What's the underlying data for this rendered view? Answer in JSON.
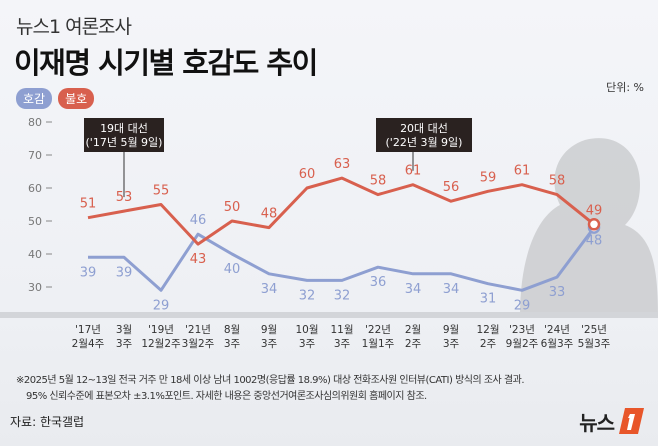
{
  "header": {
    "kicker": "뉴스1 여론조사",
    "title": "이재명 시기별 호감도 추이",
    "unit": "단위: %"
  },
  "legend": [
    {
      "label": "호감",
      "color": "#8e9fd1"
    },
    {
      "label": "불호",
      "color": "#d8604e"
    }
  ],
  "chart_data": {
    "type": "line",
    "title": "이재명 시기별 호감도 추이",
    "categories": [
      [
        "'17년",
        "2월4주"
      ],
      [
        "3월",
        "3주"
      ],
      [
        "'19년",
        "12월2주"
      ],
      [
        "'21년",
        "3월2주"
      ],
      [
        "8월",
        "3주"
      ],
      [
        "9월",
        "3주"
      ],
      [
        "10월",
        "3주"
      ],
      [
        "11월",
        "3주"
      ],
      [
        "'22년",
        "1월1주"
      ],
      [
        "2월",
        "2주"
      ],
      [
        "9월",
        "3주"
      ],
      [
        "12월",
        "2주"
      ],
      [
        "'23년",
        "9월2주"
      ],
      [
        "'24년",
        "6월3주"
      ],
      [
        "'25년",
        "5월3주"
      ]
    ],
    "series": [
      {
        "name": "호감",
        "color": "#8e9fd1",
        "values": [
          39,
          39,
          29,
          46,
          40,
          34,
          32,
          32,
          36,
          34,
          34,
          31,
          29,
          33,
          48
        ]
      },
      {
        "name": "불호",
        "color": "#d8604e",
        "values": [
          51,
          53,
          55,
          43,
          50,
          48,
          60,
          63,
          58,
          61,
          56,
          59,
          61,
          58,
          49
        ]
      }
    ],
    "yticks": [
      80,
      70,
      60,
      50,
      40,
      30
    ],
    "ylim": [
      25,
      82
    ],
    "annotations": [
      {
        "after_index": 1,
        "line1": "19대 대선",
        "line2": "('17년 5월 9일)"
      },
      {
        "after_index": 9,
        "line1": "20대 대선",
        "line2": "('22년 3월 9일)"
      }
    ]
  },
  "footnotes": [
    "※2025년 5월 12~13일 전국 거주 만 18세 이상 남녀 1002명(응답률 18.9%) 대상 전화조사원 인터뷰(CATI) 방식의 조사 결과.",
    "95% 신뢰수준에 표본오차 ±3.1%포인트. 자세한 내용은 중앙선거여론조사심의위원회 홈페이지 참조."
  ],
  "source": "자료: 한국갤럽",
  "logo": {
    "text": "뉴스",
    "mark": "1",
    "color": "#e8562a"
  }
}
